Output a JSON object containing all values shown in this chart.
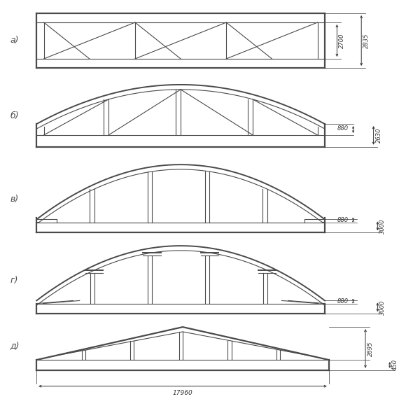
{
  "bg_color": "#ffffff",
  "line_color": "#4a4a4a",
  "lw": 0.8,
  "lw_thick": 1.4,
  "lw_outer": 1.6,
  "labels": [
    "а)",
    "б)",
    "в)",
    "г)",
    "д)"
  ],
  "dim_color": "#333333",
  "dim_lw": 0.7,
  "dim_fontsize": 6.0,
  "label_fontsize": 9
}
